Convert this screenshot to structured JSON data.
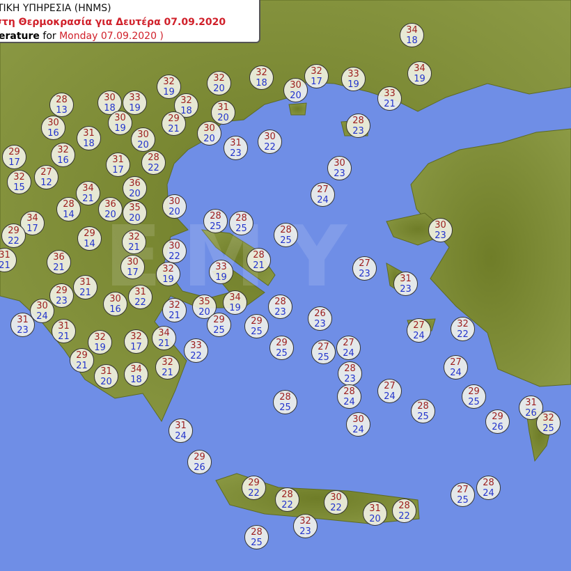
{
  "header": {
    "line1": "ΤΙΚΗ ΥΠΗΡΕΣΙΑ (HNMS)",
    "line2_a": "στη Θερμοκρασία για ",
    "line2_b": "Δευτέρα 07.09.2020",
    "line3_a": "perature",
    "line3_b": " for ",
    "line3_c": "Monday 07.09.2020 )"
  },
  "watermark": "EMY",
  "colors": {
    "sea": "#6f8ee6",
    "land": "#7d8c35",
    "max": "#9c1d1d",
    "min": "#2233cc"
  },
  "stations": [
    {
      "max": 34,
      "min": 18
    },
    {
      "max": 34,
      "min": 19
    },
    {
      "max": 33,
      "min": 21
    },
    {
      "max": 33,
      "min": 19
    },
    {
      "max": 32,
      "min": 17
    },
    {
      "max": 30,
      "min": 20
    },
    {
      "max": 32,
      "min": 18
    },
    {
      "max": 32,
      "min": 20
    },
    {
      "max": 32,
      "min": 19
    },
    {
      "max": 32,
      "min": 18
    },
    {
      "max": 31,
      "min": 20
    },
    {
      "max": 29,
      "min": 21
    },
    {
      "max": 30,
      "min": 20
    },
    {
      "max": 31,
      "min": 23
    },
    {
      "max": 30,
      "min": 22
    },
    {
      "max": 28,
      "min": 13
    },
    {
      "max": 30,
      "min": 18
    },
    {
      "max": 33,
      "min": 19
    },
    {
      "max": 30,
      "min": 16
    },
    {
      "max": 31,
      "min": 18
    },
    {
      "max": 30,
      "min": 19
    },
    {
      "max": 30,
      "min": 20
    },
    {
      "max": 29,
      "min": 17
    },
    {
      "max": 32,
      "min": 16
    },
    {
      "max": 31,
      "min": 17
    },
    {
      "max": 28,
      "min": 22
    },
    {
      "max": 32,
      "min": 15
    },
    {
      "max": 27,
      "min": 12
    },
    {
      "max": 34,
      "min": 21
    },
    {
      "max": 36,
      "min": 20
    },
    {
      "max": 28,
      "min": 14
    },
    {
      "max": 36,
      "min": 20
    },
    {
      "max": 35,
      "min": 20
    },
    {
      "max": 30,
      "min": 20
    },
    {
      "max": 34,
      "min": 17
    },
    {
      "max": 29,
      "min": 22
    },
    {
      "max": 29,
      "min": 14
    },
    {
      "max": 32,
      "min": 21
    },
    {
      "max": 28,
      "min": 25
    },
    {
      "max": 28,
      "min": 25
    },
    {
      "max": 28,
      "min": 25
    },
    {
      "max": 31,
      "min": 21
    },
    {
      "max": 36,
      "min": 21
    },
    {
      "max": 30,
      "min": 22
    },
    {
      "max": 30,
      "min": 17
    },
    {
      "max": 32,
      "min": 19
    },
    {
      "max": 33,
      "min": 19
    },
    {
      "max": 28,
      "min": 21
    },
    {
      "max": 31,
      "min": 21
    },
    {
      "max": 29,
      "min": 23
    },
    {
      "max": 30,
      "min": 16
    },
    {
      "max": 31,
      "min": 22
    },
    {
      "max": 30,
      "min": 24
    },
    {
      "max": 32,
      "min": 21
    },
    {
      "max": 35,
      "min": 20
    },
    {
      "max": 34,
      "min": 19
    },
    {
      "max": 28,
      "min": 23
    },
    {
      "max": 26,
      "min": 23
    },
    {
      "max": 29,
      "min": 25
    },
    {
      "max": 29,
      "min": 25
    },
    {
      "max": 31,
      "min": 23
    },
    {
      "max": 31,
      "min": 21
    },
    {
      "max": 32,
      "min": 19
    },
    {
      "max": 32,
      "min": 17
    },
    {
      "max": 34,
      "min": 21
    },
    {
      "max": 33,
      "min": 22
    },
    {
      "max": 29,
      "min": 25
    },
    {
      "max": 27,
      "min": 25
    },
    {
      "max": 27,
      "min": 24
    },
    {
      "max": 27,
      "min": 23
    },
    {
      "max": 31,
      "min": 23
    },
    {
      "max": 27,
      "min": 24
    },
    {
      "max": 30,
      "min": 23
    },
    {
      "max": 28,
      "min": 23
    },
    {
      "max": 30,
      "min": 23
    },
    {
      "max": 27,
      "min": 24
    },
    {
      "max": 32,
      "min": 22
    },
    {
      "max": 27,
      "min": 24
    },
    {
      "max": 29,
      "min": 21
    },
    {
      "max": 31,
      "min": 20
    },
    {
      "max": 34,
      "min": 18
    },
    {
      "max": 32,
      "min": 21
    },
    {
      "max": 28,
      "min": 23
    },
    {
      "max": 28,
      "min": 24
    },
    {
      "max": 27,
      "min": 24
    },
    {
      "max": 28,
      "min": 25
    },
    {
      "max": 28,
      "min": 25
    },
    {
      "max": 29,
      "min": 25
    },
    {
      "max": 30,
      "min": 24
    },
    {
      "max": 29,
      "min": 26
    },
    {
      "max": 31,
      "min": 26
    },
    {
      "max": 32,
      "min": 25
    },
    {
      "max": 31,
      "min": 24
    },
    {
      "max": 29,
      "min": 26
    },
    {
      "max": 29,
      "min": 22
    },
    {
      "max": 28,
      "min": 22
    },
    {
      "max": 30,
      "min": 22
    },
    {
      "max": 31,
      "min": 20
    },
    {
      "max": 28,
      "min": 22
    },
    {
      "max": 32,
      "min": 23
    },
    {
      "max": 28,
      "min": 25
    },
    {
      "max": 27,
      "min": 25
    },
    {
      "max": 28,
      "min": 24
    }
  ]
}
